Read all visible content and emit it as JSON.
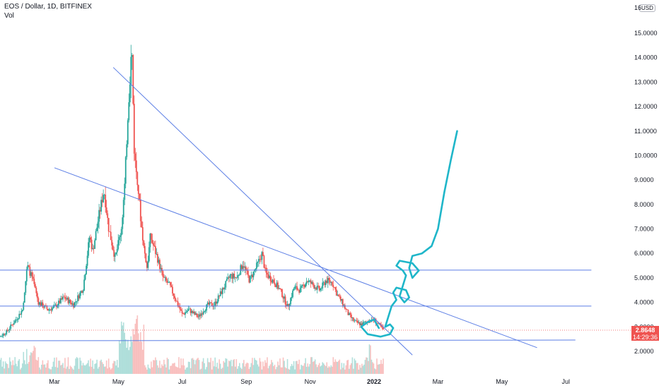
{
  "header": {
    "symbol_line": "EOS / Dollar, 1D, BITFINEX",
    "indicator": "Vol"
  },
  "currency_label": "USD",
  "last_price": "2.8648",
  "countdown": "14:29:36",
  "colors": {
    "up": "#26a69a",
    "down": "#ef5350",
    "trendline": "#5b7ee5",
    "drawing": "#1fb6c9",
    "axis_text": "#131722"
  },
  "chart_data": {
    "type": "candlestick",
    "title": "EOS / Dollar, 1D, BITFINEX",
    "y_ticks": [
      "2.0000",
      "3.0000",
      "4.0000",
      "5.0000",
      "6.0000",
      "7.0000",
      "8.0000",
      "9.0000",
      "10.0000",
      "11.0000",
      "12.0000",
      "13.0000",
      "14.0000",
      "15.0000"
    ],
    "y_top_partial": "16",
    "ylim": [
      1.35,
      16.3
    ],
    "x_ticks": [
      {
        "label": "Mar",
        "month": 2
      },
      {
        "label": "May",
        "month": 4
      },
      {
        "label": "Jul",
        "month": 6
      },
      {
        "label": "Sep",
        "month": 8
      },
      {
        "label": "Nov",
        "month": 10
      },
      {
        "label": "2022",
        "month": 12,
        "bold": true
      },
      {
        "label": "Mar",
        "month": 14
      },
      {
        "label": "May",
        "month": 16
      },
      {
        "label": "Jul",
        "month": 18
      }
    ],
    "price_path": [
      [
        0.0,
        3.1
      ],
      [
        0.3,
        2.6
      ],
      [
        0.5,
        2.8
      ],
      [
        0.8,
        3.3
      ],
      [
        1.0,
        3.7
      ],
      [
        1.15,
        5.5
      ],
      [
        1.3,
        5.0
      ],
      [
        1.5,
        4.0
      ],
      [
        1.8,
        3.7
      ],
      [
        2.0,
        3.8
      ],
      [
        2.3,
        4.2
      ],
      [
        2.6,
        3.9
      ],
      [
        2.9,
        4.6
      ],
      [
        3.1,
        6.7
      ],
      [
        3.2,
        6.1
      ],
      [
        3.4,
        7.6
      ],
      [
        3.55,
        8.6
      ],
      [
        3.7,
        7.0
      ],
      [
        3.9,
        5.8
      ],
      [
        4.0,
        6.4
      ],
      [
        4.1,
        7.1
      ],
      [
        4.2,
        8.8
      ],
      [
        4.3,
        11.8
      ],
      [
        4.42,
        14.5
      ],
      [
        4.5,
        10.0
      ],
      [
        4.6,
        9.0
      ],
      [
        4.7,
        7.4
      ],
      [
        4.8,
        6.2
      ],
      [
        4.9,
        5.4
      ],
      [
        5.0,
        6.7
      ],
      [
        5.2,
        5.9
      ],
      [
        5.4,
        5.0
      ],
      [
        5.6,
        4.7
      ],
      [
        5.8,
        4.1
      ],
      [
        6.0,
        3.5
      ],
      [
        6.2,
        3.7
      ],
      [
        6.5,
        3.4
      ],
      [
        6.8,
        3.9
      ],
      [
        7.0,
        3.9
      ],
      [
        7.3,
        4.6
      ],
      [
        7.5,
        5.1
      ],
      [
        7.7,
        5.0
      ],
      [
        7.9,
        5.6
      ],
      [
        8.1,
        4.9
      ],
      [
        8.3,
        5.4
      ],
      [
        8.5,
        6.0
      ],
      [
        8.6,
        5.2
      ],
      [
        8.9,
        4.8
      ],
      [
        9.1,
        4.4
      ],
      [
        9.3,
        3.8
      ],
      [
        9.5,
        4.6
      ],
      [
        9.7,
        4.5
      ],
      [
        9.9,
        4.9
      ],
      [
        10.1,
        4.7
      ],
      [
        10.3,
        4.5
      ],
      [
        10.5,
        4.9
      ],
      [
        10.7,
        4.8
      ],
      [
        10.85,
        4.3
      ],
      [
        11.0,
        4.0
      ],
      [
        11.2,
        3.5
      ],
      [
        11.4,
        3.2
      ],
      [
        11.6,
        3.1
      ],
      [
        11.8,
        3.2
      ],
      [
        12.0,
        3.3
      ],
      [
        12.2,
        3.0
      ],
      [
        12.3,
        2.86
      ]
    ],
    "price_lines": [
      5.32,
      3.85,
      2.43
    ],
    "current_price": 2.8648
  }
}
